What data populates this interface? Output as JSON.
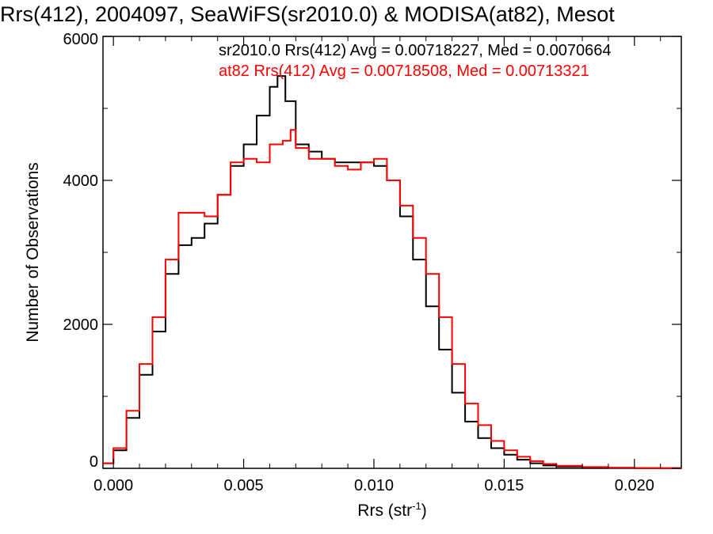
{
  "chart_data": {
    "type": "line",
    "title": "Rrs(412), 2004097, SeaWiFS(sr2010.0) & MODISA(at82), Mesot",
    "xlabel": "Rrs (str",
    "xlabel_sup": "-1",
    "xlabel_close": ")",
    "ylabel": "Number of Observations",
    "xlim": [
      -0.0004,
      0.0218
    ],
    "ylim": [
      0,
      6000
    ],
    "xticks": [
      0.0,
      0.005,
      0.01,
      0.015,
      0.02
    ],
    "xtick_labels": [
      "0.000",
      "0.005",
      "0.010",
      "0.015",
      "0.020"
    ],
    "yticks": [
      0,
      2000,
      4000,
      6000
    ],
    "ytick_labels": [
      "0",
      "2000",
      "4000",
      "6000"
    ],
    "grid": false,
    "step_histogram": true,
    "annotations": [
      {
        "text": "sr2010.0 Rrs(412) Avg = 0.00718227, Med = 0.0070664",
        "color": "#000000"
      },
      {
        "text": "at82 Rrs(412) Avg = 0.00718508, Med = 0.00713321",
        "color": "#ff0000"
      }
    ],
    "series": [
      {
        "color": "#000000",
        "x": [
          -0.0004,
          0.0,
          0.0005,
          0.001,
          0.0015,
          0.002,
          0.0025,
          0.003,
          0.0035,
          0.004,
          0.0045,
          0.005,
          0.0055,
          0.006,
          0.0063,
          0.0066,
          0.007,
          0.0075,
          0.008,
          0.0085,
          0.009,
          0.0095,
          0.01,
          0.0105,
          0.011,
          0.0115,
          0.012,
          0.0125,
          0.013,
          0.0135,
          0.014,
          0.0145,
          0.015,
          0.0155,
          0.016,
          0.0165,
          0.017,
          0.018,
          0.019,
          0.02,
          0.021,
          0.0218
        ],
        "y": [
          70,
          250,
          700,
          1300,
          1900,
          2700,
          3100,
          3200,
          3400,
          3800,
          4200,
          4500,
          4900,
          5300,
          5450,
          5100,
          4500,
          4400,
          4300,
          4250,
          4250,
          4250,
          4200,
          4000,
          3500,
          2900,
          2250,
          1650,
          1050,
          650,
          420,
          280,
          190,
          120,
          70,
          40,
          25,
          12,
          6,
          3,
          2,
          0
        ]
      },
      {
        "color": "#ff0000",
        "x": [
          -0.0004,
          0.0,
          0.0005,
          0.001,
          0.0015,
          0.002,
          0.0025,
          0.003,
          0.0035,
          0.004,
          0.0045,
          0.005,
          0.0055,
          0.006,
          0.0065,
          0.0068,
          0.007,
          0.0075,
          0.008,
          0.0085,
          0.009,
          0.0095,
          0.01,
          0.0105,
          0.011,
          0.0115,
          0.012,
          0.0125,
          0.013,
          0.0135,
          0.014,
          0.0145,
          0.015,
          0.0155,
          0.016,
          0.0165,
          0.017,
          0.018,
          0.019,
          0.02,
          0.021,
          0.0218
        ],
        "y": [
          70,
          280,
          800,
          1450,
          2100,
          2900,
          3550,
          3550,
          3500,
          3800,
          4250,
          4300,
          4250,
          4500,
          4550,
          4700,
          4450,
          4300,
          4300,
          4200,
          4150,
          4250,
          4300,
          4000,
          3650,
          3200,
          2700,
          2100,
          1450,
          900,
          600,
          380,
          250,
          160,
          100,
          60,
          35,
          18,
          10,
          5,
          3,
          0
        ]
      }
    ]
  }
}
